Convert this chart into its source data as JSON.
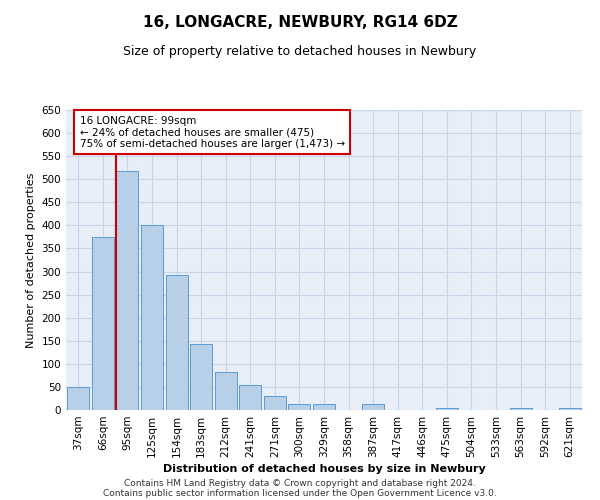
{
  "title": "16, LONGACRE, NEWBURY, RG14 6DZ",
  "subtitle": "Size of property relative to detached houses in Newbury",
  "xlabel": "Distribution of detached houses by size in Newbury",
  "ylabel": "Number of detached properties",
  "categories": [
    "37sqm",
    "66sqm",
    "95sqm",
    "125sqm",
    "154sqm",
    "183sqm",
    "212sqm",
    "241sqm",
    "271sqm",
    "300sqm",
    "329sqm",
    "358sqm",
    "387sqm",
    "417sqm",
    "446sqm",
    "475sqm",
    "504sqm",
    "533sqm",
    "563sqm",
    "592sqm",
    "621sqm"
  ],
  "values": [
    50,
    375,
    518,
    400,
    292,
    143,
    82,
    55,
    30,
    12,
    12,
    0,
    12,
    0,
    0,
    5,
    0,
    0,
    5,
    0,
    5
  ],
  "bar_color": "#b8cfe8",
  "bar_edge_color": "#5b9bd5",
  "vline_color": "#cc0000",
  "annotation_line1": "16 LONGACRE: 99sqm",
  "annotation_line2": "← 24% of detached houses are smaller (475)",
  "annotation_line3": "75% of semi-detached houses are larger (1,473) →",
  "annotation_box_color": "#ffffff",
  "annotation_box_edge": "#cc0000",
  "ylim": [
    0,
    650
  ],
  "yticks": [
    0,
    50,
    100,
    150,
    200,
    250,
    300,
    350,
    400,
    450,
    500,
    550,
    600,
    650
  ],
  "footer_line1": "Contains HM Land Registry data © Crown copyright and database right 2024.",
  "footer_line2": "Contains public sector information licensed under the Open Government Licence v3.0.",
  "grid_color": "#c8d4e8",
  "background_color": "#e8eef8",
  "title_fontsize": 11,
  "subtitle_fontsize": 9,
  "xlabel_fontsize": 8,
  "ylabel_fontsize": 8,
  "tick_fontsize": 7.5,
  "footer_fontsize": 6.5
}
